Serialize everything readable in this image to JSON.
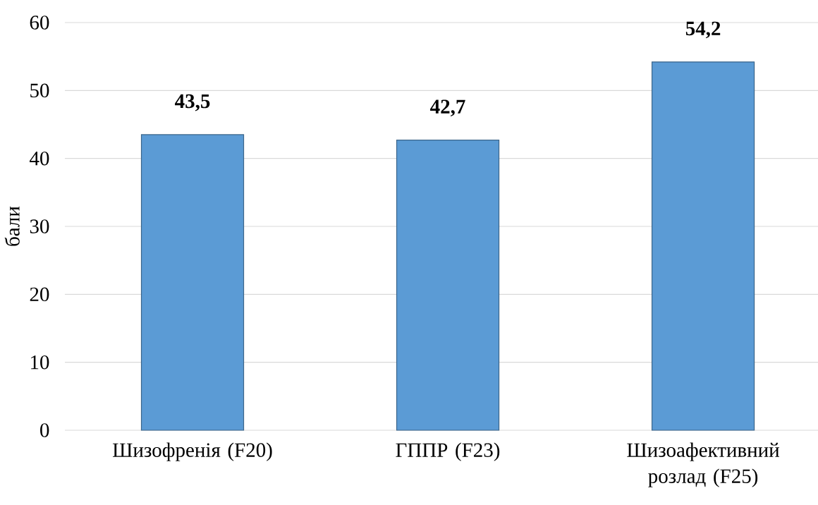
{
  "chart_data": {
    "type": "bar",
    "ylabel": "бали",
    "categories": [
      "Шизофренія (F20)",
      "ГППР (F23)",
      "Шизоафективний розлад (F25)"
    ],
    "values": [
      43.5,
      42.7,
      54.2
    ],
    "value_labels": [
      "43,5",
      "42,7",
      "54,2"
    ],
    "color": "#5b9bd5",
    "ylim": [
      0,
      60
    ],
    "yticks": [
      0,
      10,
      20,
      30,
      40,
      50,
      60
    ],
    "grid": "y"
  }
}
